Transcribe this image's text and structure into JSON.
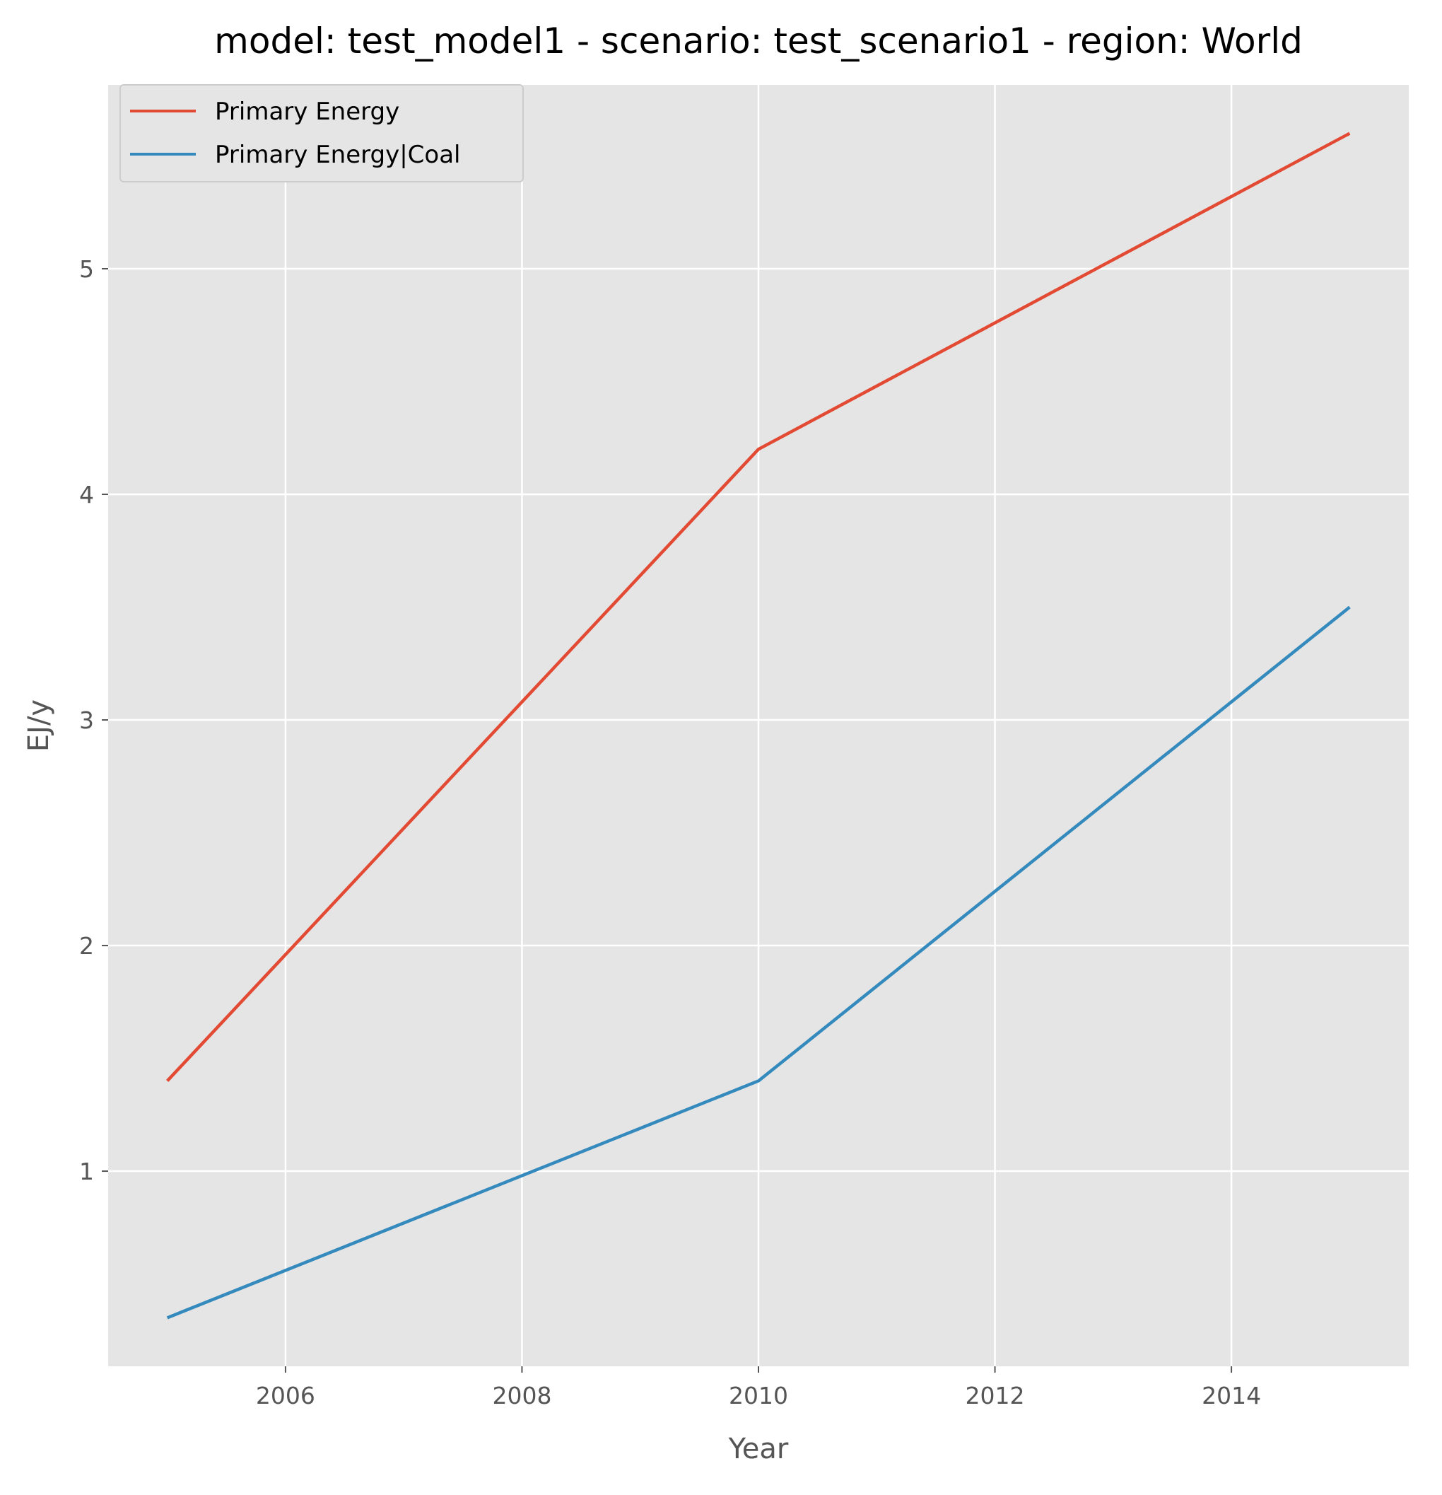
{
  "chart_data": {
    "type": "line",
    "title": "model: test_model1 - scenario: test_scenario1 - region: World",
    "xlabel": "Year",
    "ylabel": "EJ/y",
    "x": [
      2005,
      2010,
      2015
    ],
    "series": [
      {
        "name": "Primary Energy",
        "values": [
          1.4,
          4.2,
          5.6
        ],
        "color": "#E24A33"
      },
      {
        "name": "Primary Energy|Coal",
        "values": [
          0.35,
          1.4,
          3.5
        ],
        "color": "#348ABD"
      }
    ],
    "xlim": [
      2004.5,
      2015.5
    ],
    "ylim": [
      0.135,
      5.815
    ],
    "xticks": [
      2006,
      2008,
      2010,
      2012,
      2014
    ],
    "yticks": [
      1,
      2,
      3,
      4,
      5
    ],
    "grid": true,
    "legend": "top-left",
    "background": "#E5E5E5",
    "grid_color": "#FFFFFF"
  }
}
